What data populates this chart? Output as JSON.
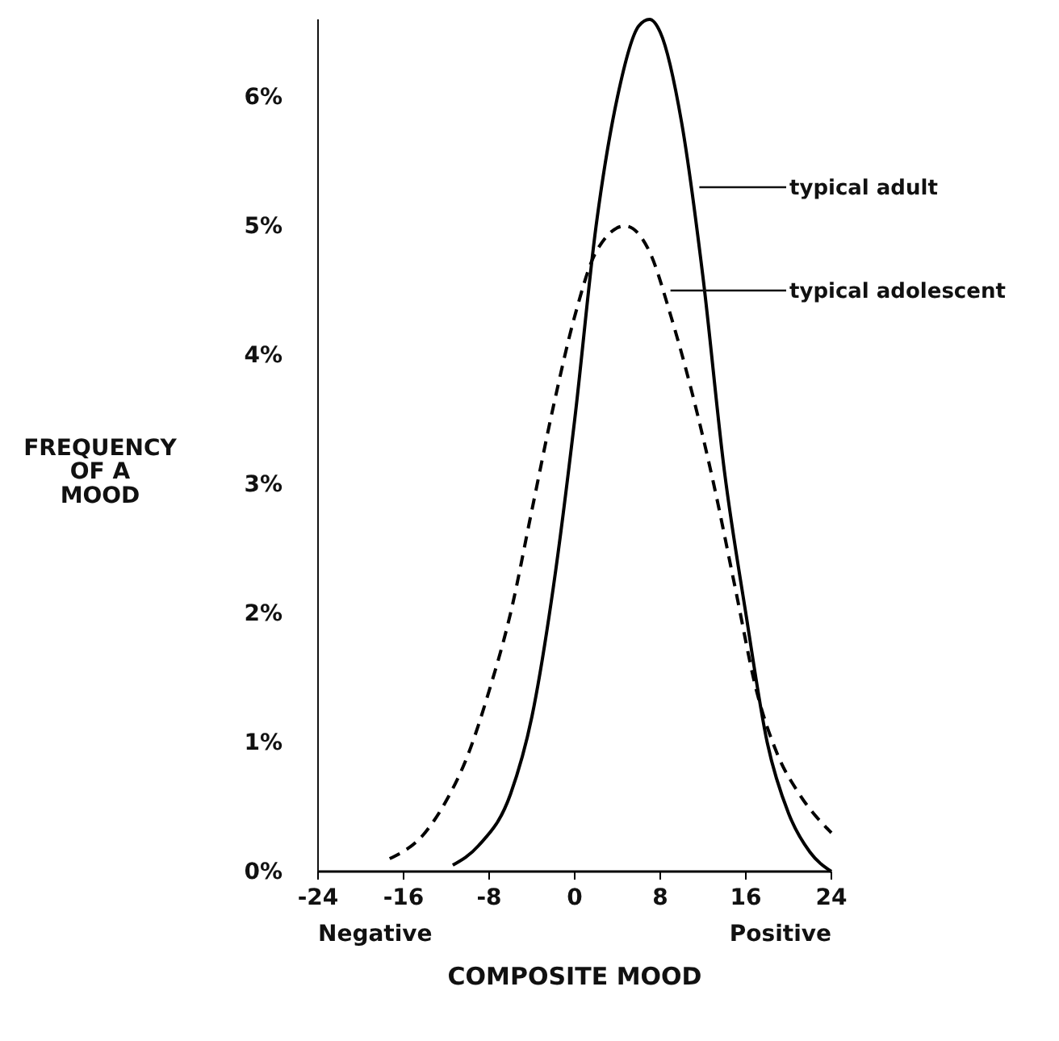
{
  "chart_data": {
    "type": "line",
    "xlabel": "COMPOSITE MOOD",
    "ylabel": "FREQUENCY OF A MOOD",
    "xlim": [
      -24,
      24
    ],
    "xticks": [
      -24,
      -16,
      -8,
      0,
      8,
      16,
      24
    ],
    "ylim": [
      0,
      6.6
    ],
    "yticks": [
      {
        "value": 0,
        "label": "0%"
      },
      {
        "value": 1,
        "label": "1%"
      },
      {
        "value": 2,
        "label": "2%"
      },
      {
        "value": 3,
        "label": "3%"
      },
      {
        "value": 4,
        "label": "4%"
      },
      {
        "value": 5,
        "label": "5%"
      },
      {
        "value": 6,
        "label": "6%"
      }
    ],
    "grid": false,
    "legend": false,
    "marker": "none",
    "annotations": [
      "Negative",
      "Positive",
      {
        "text": "typical adult",
        "x": 11.2,
        "y": 5.3
      },
      {
        "text": "typical adolescent",
        "x": 8.5,
        "y": 4.5
      }
    ],
    "series": [
      {
        "color": "#000000",
        "line_style": "solid",
        "x": [
          -11.4,
          -9,
          -6,
          -4,
          -2,
          0,
          2,
          4,
          6,
          7,
          8,
          10,
          12,
          14,
          16,
          18,
          20,
          22,
          24
        ],
        "values": [
          0.05,
          0.2,
          0.6,
          1.2,
          2.2,
          3.5,
          5.0,
          6.0,
          6.55,
          6.6,
          6.5,
          5.8,
          4.6,
          3.1,
          2.0,
          1.0,
          0.45,
          0.15,
          0.0
        ]
      },
      {
        "color": "#000000",
        "line_style": "dashed",
        "x": [
          -17.3,
          -14,
          -12,
          -10,
          -8,
          -6,
          -4,
          -2,
          0,
          2,
          4.7,
          7,
          9,
          11,
          13,
          15,
          17,
          19,
          21,
          24
        ],
        "values": [
          0.1,
          0.3,
          0.55,
          0.9,
          1.4,
          2.0,
          2.8,
          3.6,
          4.3,
          4.8,
          5.0,
          4.8,
          4.3,
          3.7,
          3.0,
          2.2,
          1.4,
          0.9,
          0.6,
          0.3
        ]
      }
    ]
  }
}
